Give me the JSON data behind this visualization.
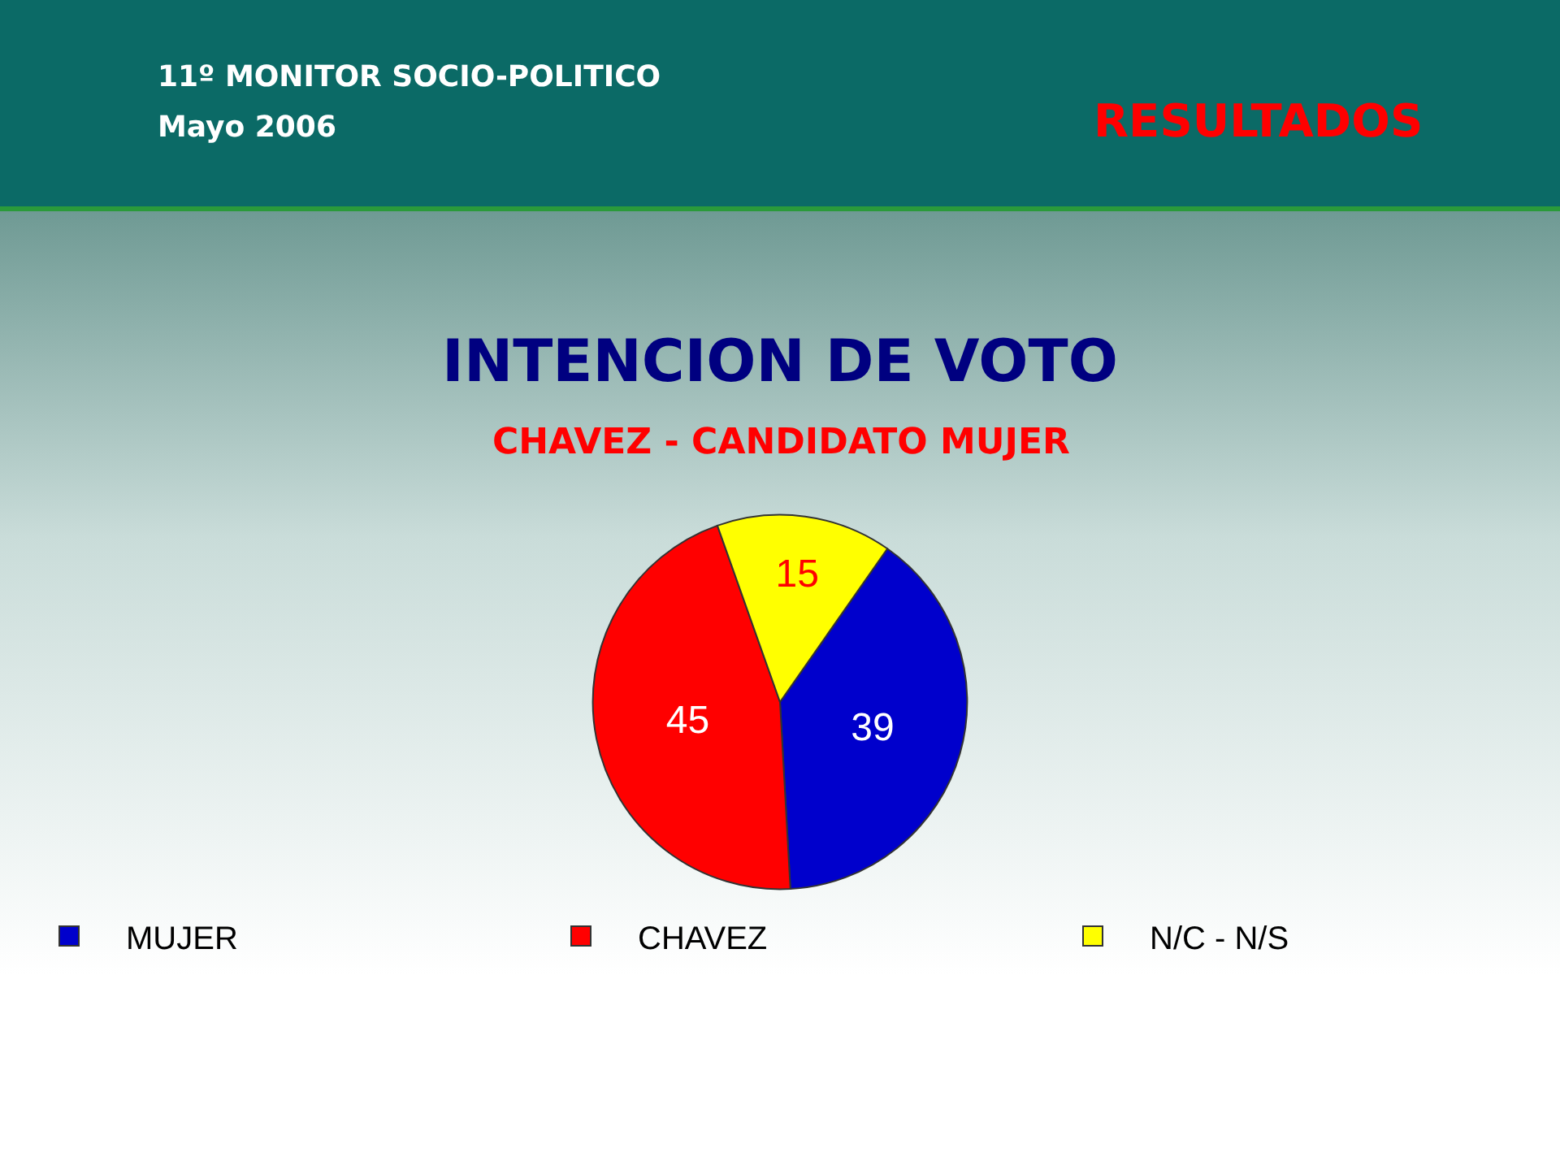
{
  "chart_data": {
    "type": "pie",
    "title": "INTENCION DE VOTO",
    "subtitle": "CHAVEZ - CANDIDATO MUJER",
    "annotations": [
      "11º MONITOR SOCIO-POLITICO",
      "Mayo 2006",
      "RESULTADOS"
    ],
    "categories": [
      "MUJER",
      "CHAVEZ",
      "N/C - N/S"
    ],
    "values": [
      39,
      45,
      15
    ],
    "colors": [
      "#0000cc",
      "#ff0000",
      "#ffff00"
    ],
    "data_labels": true,
    "legend": "bottom"
  }
}
